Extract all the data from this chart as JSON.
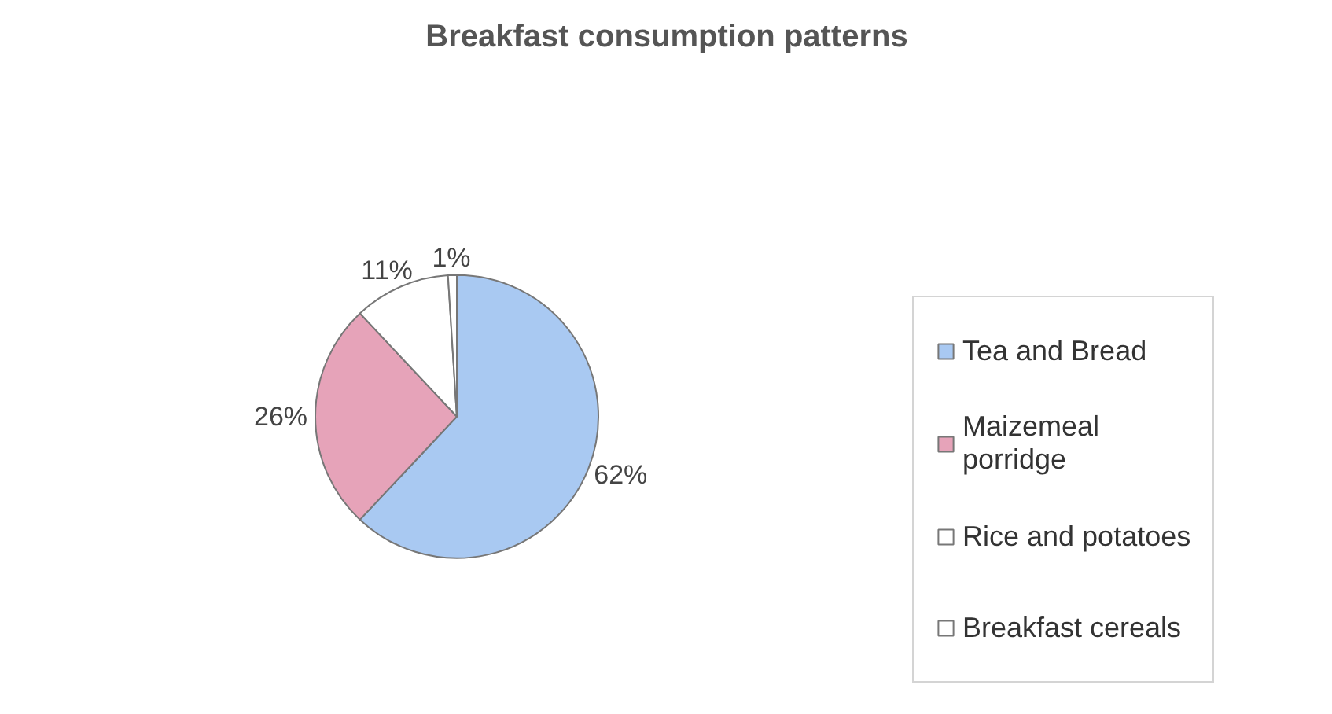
{
  "chart_data": {
    "type": "pie",
    "title": "Breakfast consumption patterns",
    "categories": [
      "Tea and Bread",
      "Maizemeal porridge",
      "Rice and potatoes",
      "Breakfast cereals"
    ],
    "values": [
      62,
      26,
      11,
      1
    ],
    "colors": [
      "#a9c9f2",
      "#e6a3b9",
      "#ffffff",
      "#ffffff"
    ],
    "value_labels": [
      "62%",
      "26%",
      "11%",
      "1%"
    ],
    "legend": "right"
  }
}
